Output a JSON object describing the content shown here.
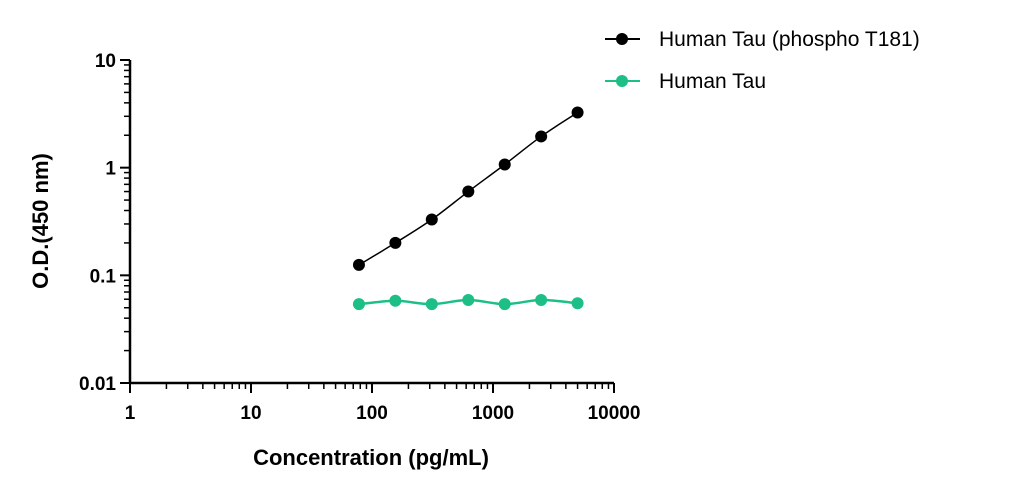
{
  "chart_data": {
    "type": "scatter",
    "xlabel": "Concentration (pg/mL)",
    "ylabel": "O.D.(450 nm)",
    "x_scale": "log",
    "y_scale": "log",
    "xlim": [
      1,
      10000
    ],
    "ylim": [
      0.01,
      10
    ],
    "x_ticks": [
      "1",
      "10",
      "100",
      "1000",
      "10000"
    ],
    "y_ticks": [
      "0.01",
      "0.1",
      "1",
      "10"
    ],
    "grid": false,
    "legend_position": "top-right",
    "series": [
      {
        "name": "Human Tau (phospho T181)",
        "color": "#000000",
        "x": [
          78,
          156,
          312,
          625,
          1250,
          2500,
          5000
        ],
        "y": [
          0.125,
          0.2,
          0.33,
          0.6,
          1.07,
          1.95,
          3.25
        ]
      },
      {
        "name": "Human Tau",
        "color": "#1dbf86",
        "x": [
          78,
          156,
          312,
          625,
          1250,
          2500,
          5000
        ],
        "y": [
          0.054,
          0.058,
          0.054,
          0.059,
          0.054,
          0.059,
          0.055
        ]
      }
    ]
  }
}
